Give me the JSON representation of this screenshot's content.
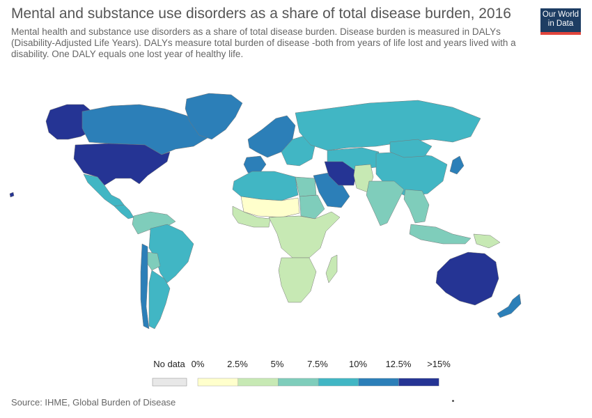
{
  "header": {
    "title": "Mental and substance use disorders as a share of total disease burden, 2016",
    "subtitle": "Mental health and substance use disorders as a share of total disease burden. Disease burden is measured in DALYs (Disability-Adjusted Life Years). DALYs measure total burden of disease -both from years of life lost and years lived with a disability. One DALY equals one lost year of healthy life."
  },
  "logo": {
    "line1": "Our World",
    "line2": "in Data",
    "bg": "#1d3d63",
    "accent": "#e2453c"
  },
  "legend": {
    "no_data_label": "No data",
    "no_data_color": "#e8e8e8",
    "tick_labels": [
      "0%",
      "2.5%",
      "5%",
      "7.5%",
      "10%",
      "12.5%",
      ">15%"
    ],
    "bins": [
      {
        "range": "0%–2.5%",
        "color": "#ffffcc"
      },
      {
        "range": "2.5%–5%",
        "color": "#c7e9b4"
      },
      {
        "range": "5%–7.5%",
        "color": "#7fcdbb"
      },
      {
        "range": "7.5%–10%",
        "color": "#41b6c4"
      },
      {
        "range": "10%–12.5%",
        "color": "#2c7fb8"
      },
      {
        "range": ">12.5%",
        "color": "#253494"
      }
    ]
  },
  "map_regions": [
    {
      "name": "Alaska",
      "color": "#253494"
    },
    {
      "name": "Canada",
      "color": "#2c7fb8"
    },
    {
      "name": "Greenland",
      "color": "#2c7fb8"
    },
    {
      "name": "United States",
      "color": "#253494"
    },
    {
      "name": "Mexico",
      "color": "#41b6c4"
    },
    {
      "name": "Central America",
      "color": "#41b6c4"
    },
    {
      "name": "Northern South America",
      "color": "#7fcdbb"
    },
    {
      "name": "Brazil",
      "color": "#41b6c4"
    },
    {
      "name": "Bolivia",
      "color": "#7fcdbb"
    },
    {
      "name": "Southern Cone",
      "color": "#41b6c4"
    },
    {
      "name": "Chile",
      "color": "#2c7fb8"
    },
    {
      "name": "Western Europe",
      "color": "#2c7fb8"
    },
    {
      "name": "Iberia",
      "color": "#2c7fb8"
    },
    {
      "name": "Eastern Europe",
      "color": "#41b6c4"
    },
    {
      "name": "Russia",
      "color": "#41b6c4"
    },
    {
      "name": "Central Asia",
      "color": "#41b6c4"
    },
    {
      "name": "China",
      "color": "#41b6c4"
    },
    {
      "name": "Mongolia",
      "color": "#41b6c4"
    },
    {
      "name": "Japan",
      "color": "#2c7fb8"
    },
    {
      "name": "North Africa",
      "color": "#41b6c4"
    },
    {
      "name": "Egypt",
      "color": "#7fcdbb"
    },
    {
      "name": "Sahel",
      "color": "#ffffcc"
    },
    {
      "name": "Sudan",
      "color": "#7fcdbb"
    },
    {
      "name": "West Africa",
      "color": "#c7e9b4"
    },
    {
      "name": "Central and East Africa",
      "color": "#c7e9b4"
    },
    {
      "name": "Southern Africa",
      "color": "#c7e9b4"
    },
    {
      "name": "Madagascar",
      "color": "#c7e9b4"
    },
    {
      "name": "Arabian Peninsula",
      "color": "#2c7fb8"
    },
    {
      "name": "Iran",
      "color": "#253494"
    },
    {
      "name": "Afghanistan and Pakistan",
      "color": "#c7e9b4"
    },
    {
      "name": "India",
      "color": "#7fcdbb"
    },
    {
      "name": "Southeast Asia",
      "color": "#7fcdbb"
    },
    {
      "name": "Indonesia",
      "color": "#7fcdbb"
    },
    {
      "name": "Papua New Guinea",
      "color": "#c7e9b4"
    },
    {
      "name": "Australia",
      "color": "#253494"
    },
    {
      "name": "New Zealand",
      "color": "#2c7fb8"
    },
    {
      "name": "Hawaii",
      "color": "#253494"
    }
  ],
  "footer": {
    "source": "Source: IHME, Global Burden of Disease"
  }
}
